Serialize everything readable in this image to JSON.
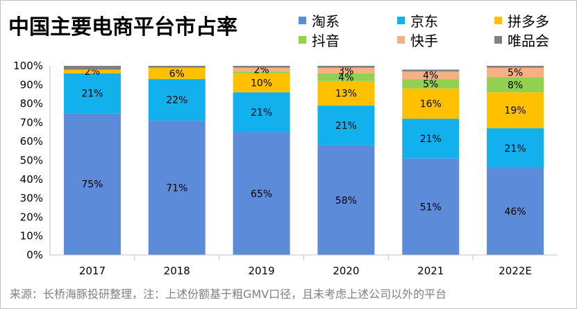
{
  "chart_data": {
    "type": "bar",
    "stacked": true,
    "title": "中国主要电商平台市占率",
    "categories": [
      "2017",
      "2018",
      "2019",
      "2020",
      "2021",
      "2022E"
    ],
    "ylim": [
      0,
      100
    ],
    "yticks": [
      "0%",
      "10%",
      "20%",
      "30%",
      "40%",
      "50%",
      "60%",
      "70%",
      "80%",
      "90%",
      "100%"
    ],
    "series": [
      {
        "name": "淘系",
        "color": "#5b8bd9",
        "values": [
          75,
          71,
          65,
          58,
          51,
          46
        ],
        "labels": [
          "75%",
          "71%",
          "65%",
          "58%",
          "51%",
          "46%"
        ]
      },
      {
        "name": "京东",
        "color": "#13b0ee",
        "values": [
          21,
          22,
          21,
          21,
          21,
          21
        ],
        "labels": [
          "21%",
          "22%",
          "21%",
          "21%",
          "21%",
          "21%"
        ]
      },
      {
        "name": "拼多多",
        "color": "#ffc000",
        "values": [
          2,
          6,
          10,
          13,
          16,
          19
        ],
        "labels": [
          "2%",
          "6%",
          "10%",
          "13%",
          "16%",
          "19%"
        ]
      },
      {
        "name": "抖音",
        "color": "#92d050",
        "values": [
          0,
          0,
          1,
          4,
          5,
          8
        ],
        "labels": [
          "",
          "",
          "",
          "4%",
          "5%",
          "8%"
        ]
      },
      {
        "name": "快手",
        "color": "#f4b183",
        "values": [
          0,
          0,
          2,
          3,
          4,
          5
        ],
        "labels": [
          "",
          "",
          "2%",
          "3%",
          "4%",
          "5%"
        ]
      },
      {
        "name": "唯品会",
        "color": "#808080",
        "values": [
          2,
          1,
          1,
          1,
          1,
          1
        ],
        "labels": [
          "",
          "",
          "",
          "",
          "",
          ""
        ]
      }
    ],
    "grid": false,
    "legend": "top-right"
  },
  "footnote": "来源：长桥海豚投研整理，注：上述份额基于粗GMV口径，且未考虑上述公司以外的平台"
}
